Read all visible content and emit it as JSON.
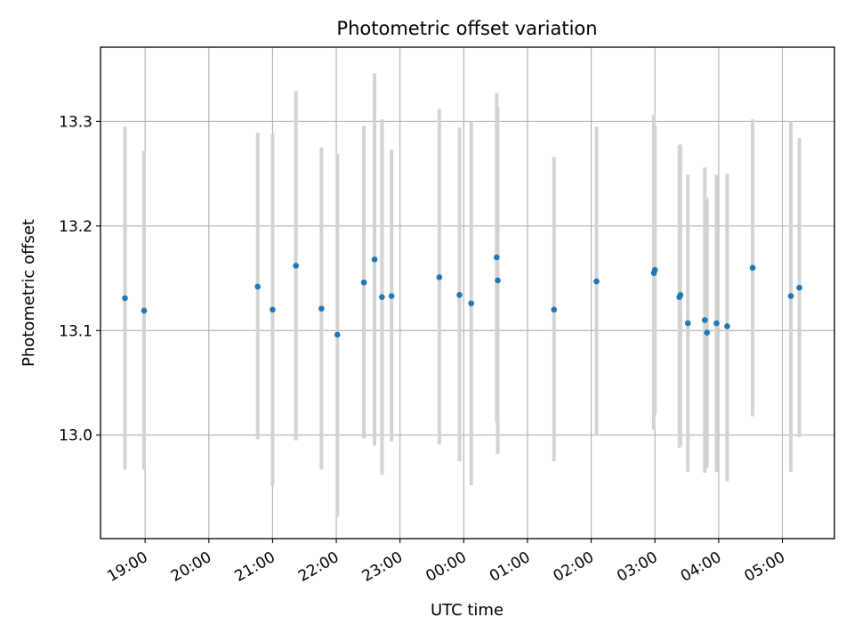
{
  "chart_data": {
    "type": "scatter",
    "title": "Photometric offset variation",
    "xlabel": "UTC time",
    "ylabel": "Photometric offset",
    "x_axis_kind": "time",
    "x_start_time": "18:18",
    "x_end_time": "05:49",
    "xticks": [
      "19:00",
      "20:00",
      "21:00",
      "22:00",
      "23:00",
      "00:00",
      "01:00",
      "02:00",
      "03:00",
      "04:00",
      "05:00"
    ],
    "ylim": [
      12.901,
      13.371
    ],
    "yticks": [
      "13.0",
      "13.1",
      "13.2",
      "13.3"
    ],
    "grid": true,
    "colors": {
      "point": "#1f77b4",
      "errorbar": "#d3d3d3",
      "grid": "#b0b0b0"
    },
    "points": [
      {
        "t": "18:41",
        "y": 13.131,
        "ylo": 12.967,
        "yhi": 13.295
      },
      {
        "t": "18:59",
        "y": 13.119,
        "ylo": 12.967,
        "yhi": 13.272
      },
      {
        "t": "20:46",
        "y": 13.142,
        "ylo": 12.996,
        "yhi": 13.289
      },
      {
        "t": "21:00",
        "y": 13.12,
        "ylo": 12.951,
        "yhi": 13.288
      },
      {
        "t": "21:22",
        "y": 13.162,
        "ylo": 12.995,
        "yhi": 13.329
      },
      {
        "t": "21:46",
        "y": 13.121,
        "ylo": 12.967,
        "yhi": 13.275
      },
      {
        "t": "22:01",
        "y": 13.096,
        "ylo": 12.922,
        "yhi": 13.269
      },
      {
        "t": "22:26",
        "y": 13.146,
        "ylo": 12.997,
        "yhi": 13.296
      },
      {
        "t": "22:36",
        "y": 13.168,
        "ylo": 12.99,
        "yhi": 13.346
      },
      {
        "t": "22:43",
        "y": 13.132,
        "ylo": 12.962,
        "yhi": 13.302
      },
      {
        "t": "22:52",
        "y": 13.133,
        "ylo": 12.994,
        "yhi": 13.273
      },
      {
        "t": "23:37",
        "y": 13.151,
        "ylo": 12.991,
        "yhi": 13.312
      },
      {
        "t": "23:56",
        "y": 13.134,
        "ylo": 12.975,
        "yhi": 13.294
      },
      {
        "t": "00:07",
        "y": 13.126,
        "ylo": 12.952,
        "yhi": 13.3
      },
      {
        "t": "00:31",
        "y": 13.17,
        "ylo": 13.013,
        "yhi": 13.327
      },
      {
        "t": "00:32",
        "y": 13.148,
        "ylo": 12.982,
        "yhi": 13.314
      },
      {
        "t": "01:25",
        "y": 13.12,
        "ylo": 12.975,
        "yhi": 13.266
      },
      {
        "t": "02:05",
        "y": 13.147,
        "ylo": 13.0,
        "yhi": 13.295
      },
      {
        "t": "02:59",
        "y": 13.155,
        "ylo": 13.005,
        "yhi": 13.306
      },
      {
        "t": "03:00",
        "y": 13.158,
        "ylo": 13.02,
        "yhi": 13.296
      },
      {
        "t": "03:23",
        "y": 13.132,
        "ylo": 12.988,
        "yhi": 13.277
      },
      {
        "t": "03:24",
        "y": 13.134,
        "ylo": 12.99,
        "yhi": 13.278
      },
      {
        "t": "03:31",
        "y": 13.107,
        "ylo": 12.965,
        "yhi": 13.249
      },
      {
        "t": "03:47",
        "y": 13.11,
        "ylo": 12.964,
        "yhi": 13.256
      },
      {
        "t": "03:49",
        "y": 13.098,
        "ylo": 12.969,
        "yhi": 13.227
      },
      {
        "t": "03:58",
        "y": 13.107,
        "ylo": 12.965,
        "yhi": 13.249
      },
      {
        "t": "04:08",
        "y": 13.104,
        "ylo": 12.956,
        "yhi": 13.25
      },
      {
        "t": "04:32",
        "y": 13.16,
        "ylo": 13.018,
        "yhi": 13.302
      },
      {
        "t": "05:08",
        "y": 13.133,
        "ylo": 12.965,
        "yhi": 13.3
      },
      {
        "t": "05:16",
        "y": 13.141,
        "ylo": 12.998,
        "yhi": 13.284
      }
    ]
  }
}
